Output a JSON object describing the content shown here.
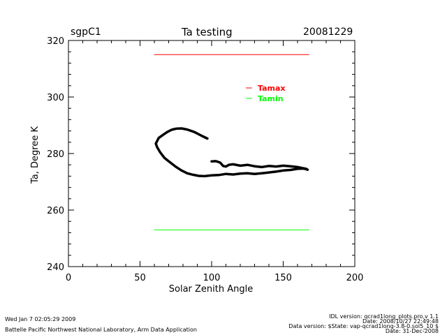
{
  "header": {
    "site": "sgpC1",
    "title": "Ta testing",
    "date": "20081229"
  },
  "footer": {
    "run_time": "Wed Jan  7 02:05:29 2009",
    "org": "Battelle Pacific Northwest National Laboratory, Arm Data Application",
    "idl_version": "IDL version: qcrad1long_plots.pro,v 1.1",
    "idl_date": "Date: 2008/10/27 22:49:48",
    "data_version": "Data version: $State: vap-qcrad1long-3.8-0.sol5_10 $",
    "data_date": "Date: 31-Dec-2008"
  },
  "chart_data": {
    "type": "line",
    "title": "Ta testing",
    "xlabel": "Solar Zenith Angle",
    "ylabel": "Ta, Degree K",
    "xlim": [
      0,
      200
    ],
    "ylim": [
      240,
      320
    ],
    "xticks": [
      0,
      50,
      100,
      150,
      200
    ],
    "yticks": [
      240,
      260,
      280,
      300,
      320
    ],
    "grid": false,
    "legend": {
      "placement": "top-right",
      "entries": [
        {
          "label": "Tamax",
          "color": "#ff0000"
        },
        {
          "label": "Tamin",
          "color": "#00ff00"
        }
      ]
    },
    "series": [
      {
        "name": "Ta",
        "color": "#000000",
        "x": [
          97,
          93,
          88,
          83,
          79,
          75,
          72,
          69,
          66,
          63,
          62,
          61,
          62,
          64,
          67,
          71,
          75,
          79,
          83,
          87,
          91,
          95,
          100,
          105,
          110,
          115,
          120,
          125,
          130,
          135,
          140,
          145,
          150,
          155,
          160,
          164,
          166,
          167
        ],
        "y": [
          285.3,
          286.3,
          287.6,
          288.5,
          288.9,
          288.8,
          288.4,
          287.6,
          286.6,
          285.5,
          284.5,
          283.5,
          282.2,
          280.5,
          278.5,
          276.9,
          275.3,
          274.0,
          273.0,
          272.5,
          272.1,
          272.0,
          272.3,
          272.4,
          272.8,
          272.6,
          272.9,
          273.0,
          272.8,
          273.0,
          273.3,
          273.6,
          274.0,
          274.2,
          274.6,
          274.7,
          274.5,
          274.3
        ]
      },
      {
        "name": "Ta",
        "color": "#000000",
        "x": [
          100,
          103,
          106,
          108,
          110,
          112,
          115,
          120,
          125,
          130,
          135,
          140,
          145,
          150,
          155,
          160,
          164,
          166,
          167
        ],
        "y": [
          277.2,
          277.3,
          276.8,
          275.6,
          275.4,
          276.0,
          276.2,
          275.7,
          276.0,
          275.5,
          275.2,
          275.6,
          275.4,
          275.7,
          275.5,
          275.2,
          274.8,
          274.6,
          274.3
        ]
      },
      {
        "name": "Tamax",
        "color": "#ff0000",
        "x": [
          60,
          168
        ],
        "y": [
          315,
          315
        ]
      },
      {
        "name": "Tamin",
        "color": "#00ff00",
        "x": [
          60,
          168
        ],
        "y": [
          253,
          253
        ]
      }
    ]
  }
}
